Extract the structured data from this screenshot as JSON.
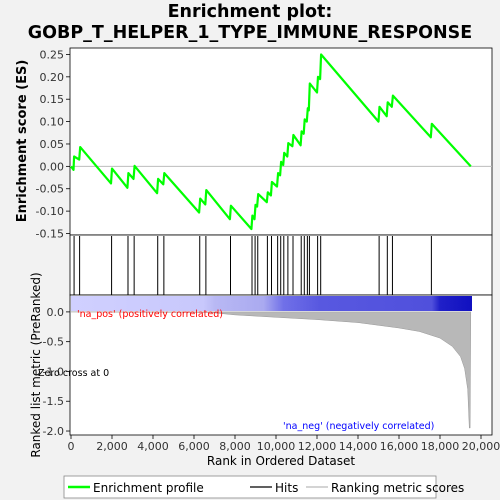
{
  "title_line1": "Enrichment plot:",
  "title_line2": "GOBP_T_HELPER_1_TYPE_IMMUNE_RESPONSE",
  "chart_data": [
    {
      "type": "line",
      "name": "enrichment-profile",
      "ylabel": "Enrichment score (ES)",
      "xlim": [
        0,
        20000
      ],
      "ylim": [
        -0.15,
        0.27
      ],
      "yticks": [
        -0.15,
        -0.1,
        -0.05,
        0.0,
        0.05,
        0.1,
        0.15,
        0.2,
        0.25
      ],
      "ytick_labels": [
        "-0.15",
        "-0.10",
        "-0.05",
        "0.00",
        "0.05",
        "0.10",
        "0.15",
        "0.20",
        "0.25"
      ],
      "line_color": "#00ff00",
      "points": [
        [
          0,
          0.0
        ],
        [
          120,
          -0.008
        ],
        [
          150,
          0.022
        ],
        [
          400,
          0.015
        ],
        [
          450,
          0.043
        ],
        [
          1950,
          -0.038
        ],
        [
          2000,
          -0.005
        ],
        [
          2750,
          -0.048
        ],
        [
          2800,
          -0.015
        ],
        [
          3050,
          -0.028
        ],
        [
          3100,
          0.001
        ],
        [
          4200,
          -0.06
        ],
        [
          4250,
          -0.028
        ],
        [
          4500,
          -0.04
        ],
        [
          4550,
          -0.015
        ],
        [
          6250,
          -0.103
        ],
        [
          6300,
          -0.072
        ],
        [
          6550,
          -0.085
        ],
        [
          6600,
          -0.053
        ],
        [
          7750,
          -0.118
        ],
        [
          7800,
          -0.088
        ],
        [
          8800,
          -0.14
        ],
        [
          8850,
          -0.11
        ],
        [
          8950,
          -0.118
        ],
        [
          9000,
          -0.086
        ],
        [
          9080,
          -0.09
        ],
        [
          9130,
          -0.062
        ],
        [
          9550,
          -0.08
        ],
        [
          9600,
          -0.058
        ],
        [
          9750,
          -0.065
        ],
        [
          9800,
          -0.035
        ],
        [
          10050,
          -0.045
        ],
        [
          10100,
          -0.015
        ],
        [
          10200,
          -0.02
        ],
        [
          10250,
          0.01
        ],
        [
          10350,
          0.003
        ],
        [
          10400,
          0.03
        ],
        [
          10550,
          0.022
        ],
        [
          10600,
          0.052
        ],
        [
          10800,
          0.045
        ],
        [
          10850,
          0.07
        ],
        [
          11200,
          0.047
        ],
        [
          11250,
          0.078
        ],
        [
          11350,
          0.073
        ],
        [
          11400,
          0.105
        ],
        [
          11500,
          0.1
        ],
        [
          11550,
          0.13
        ],
        [
          11600,
          0.125
        ],
        [
          11650,
          0.185
        ],
        [
          12000,
          0.165
        ],
        [
          12050,
          0.2
        ],
        [
          12150,
          0.195
        ],
        [
          12200,
          0.25
        ],
        [
          15000,
          0.1
        ],
        [
          15050,
          0.133
        ],
        [
          15400,
          0.112
        ],
        [
          15450,
          0.143
        ],
        [
          15650,
          0.133
        ],
        [
          15700,
          0.158
        ],
        [
          17550,
          0.065
        ],
        [
          17600,
          0.095
        ],
        [
          19500,
          0.0
        ]
      ]
    },
    {
      "type": "hits",
      "name": "hits",
      "hit_positions": [
        150,
        420,
        1980,
        2780,
        3080,
        4230,
        4530,
        6280,
        6580,
        7780,
        8830,
        8980,
        9110,
        9580,
        9780,
        10080,
        10230,
        10380,
        10580,
        10830,
        11230,
        11380,
        11530,
        11630,
        12030,
        12180,
        15030,
        15430,
        15680,
        17580
      ]
    },
    {
      "type": "area",
      "name": "ranked-list-metric",
      "ylabel": "Ranked list metric (PreRanked)",
      "xlabel": "Rank in Ordered Dataset",
      "xlim": [
        0,
        20000
      ],
      "ylim": [
        -2.05,
        0.25
      ],
      "xticks": [
        0,
        2000,
        4000,
        6000,
        8000,
        10000,
        12000,
        14000,
        16000,
        18000,
        20000
      ],
      "xtick_labels": [
        "0",
        "2,000",
        "4,000",
        "6,000",
        "8,000",
        "10,000",
        "12,000",
        "14,000",
        "16,000",
        "18,000",
        "20,000"
      ],
      "yticks": [
        0.0,
        -0.5,
        -1.0,
        -1.5,
        -2.0
      ],
      "ytick_labels": [
        "0.0",
        "-0.5",
        "-1.0",
        "-1.5",
        "-2.0"
      ],
      "points": [
        [
          0,
          0.0
        ],
        [
          6800,
          -0.01
        ],
        [
          8000,
          -0.05
        ],
        [
          10000,
          -0.09
        ],
        [
          12000,
          -0.13
        ],
        [
          14000,
          -0.18
        ],
        [
          16000,
          -0.27
        ],
        [
          17000,
          -0.33
        ],
        [
          18000,
          -0.44
        ],
        [
          18600,
          -0.58
        ],
        [
          19000,
          -0.75
        ],
        [
          19200,
          -0.95
        ],
        [
          19350,
          -1.3
        ],
        [
          19430,
          -1.95
        ],
        [
          19470,
          -1.95
        ],
        [
          19500,
          0.0
        ]
      ],
      "pos_label": "'na_pos' (positively correlated)",
      "neg_label": "'na_neg' (negatively correlated)",
      "zero_cross_label": "Zero cross at 0",
      "pos_color": "#ff0000",
      "neg_color": "#0000ff"
    }
  ],
  "legend": {
    "items": [
      {
        "label": "Enrichment profile",
        "color": "#00ff00"
      },
      {
        "label": "Hits",
        "color": "#000000"
      },
      {
        "label": "Ranking metric scores",
        "color": "#bbbbbb"
      }
    ]
  }
}
